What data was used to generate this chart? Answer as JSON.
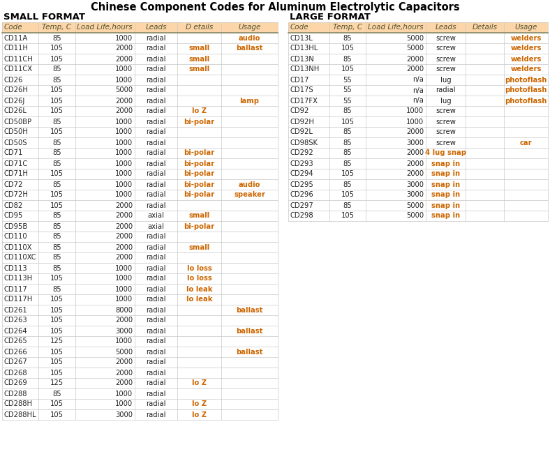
{
  "title": "Chinese Component Codes for Aluminum Electrolytic Capacitors",
  "small_format_label": "SMALL FORMAT",
  "large_format_label": "LARGE FORMAT",
  "small_headers": [
    "Code",
    "Temp, C",
    "Load Life,hours",
    "Leads",
    "D etails",
    "Usage"
  ],
  "large_headers": [
    "Code",
    "Temp, C",
    "Load Life,hours",
    "Leads",
    "Details",
    "Usage"
  ],
  "small_data": [
    [
      "CD11A",
      "85",
      "1000",
      "radial",
      "",
      "audio"
    ],
    [
      "CD11H",
      "105",
      "2000",
      "radial",
      "small",
      "ballast"
    ],
    [
      "CD11CH",
      "105",
      "2000",
      "radial",
      "small",
      ""
    ],
    [
      "CD11CX",
      "85",
      "1000",
      "radial",
      "small",
      ""
    ],
    [
      "CD26",
      "85",
      "1000",
      "radial",
      "",
      ""
    ],
    [
      "CD26H",
      "105",
      "5000",
      "radial",
      "",
      ""
    ],
    [
      "CD26J",
      "105",
      "2000",
      "radial",
      "",
      "lamp"
    ],
    [
      "CD26L",
      "105",
      "2000",
      "radial",
      "lo Z",
      ""
    ],
    [
      "CD50BP",
      "85",
      "1000",
      "radial",
      "bi-polar",
      ""
    ],
    [
      "CD50H",
      "105",
      "1000",
      "radial",
      "",
      ""
    ],
    [
      "CD50S",
      "85",
      "1000",
      "radial",
      "",
      ""
    ],
    [
      "CD71",
      "85",
      "1000",
      "radial",
      "bi-polar",
      ""
    ],
    [
      "CD71C",
      "85",
      "1000",
      "radial",
      "bi-polar",
      ""
    ],
    [
      "CD71H",
      "105",
      "1000",
      "radial",
      "bi-polar",
      ""
    ],
    [
      "CD72",
      "85",
      "1000",
      "radial",
      "bi-polar",
      "audio"
    ],
    [
      "CD72H",
      "105",
      "1000",
      "radial",
      "bi-polar",
      "speaker"
    ],
    [
      "CD82",
      "105",
      "2000",
      "radial",
      "",
      ""
    ],
    [
      "CD95",
      "85",
      "2000",
      "axial",
      "small",
      ""
    ],
    [
      "CD95B",
      "85",
      "2000",
      "axial",
      "bi-polar",
      ""
    ],
    [
      "CD110",
      "85",
      "2000",
      "radial",
      "",
      ""
    ],
    [
      "CD110X",
      "85",
      "2000",
      "radial",
      "small",
      ""
    ],
    [
      "CD110XC",
      "85",
      "2000",
      "radial",
      "",
      ""
    ],
    [
      "CD113",
      "85",
      "1000",
      "radial",
      "lo loss",
      ""
    ],
    [
      "CD113H",
      "105",
      "1000",
      "radial",
      "lo loss",
      ""
    ],
    [
      "CD117",
      "85",
      "1000",
      "radial",
      "lo leak",
      ""
    ],
    [
      "CD117H",
      "105",
      "1000",
      "radial",
      "lo leak",
      ""
    ],
    [
      "CD261",
      "105",
      "8000",
      "radial",
      "",
      "ballast"
    ],
    [
      "CD263",
      "105",
      "2000",
      "radial",
      "",
      ""
    ],
    [
      "CD264",
      "105",
      "3000",
      "radial",
      "",
      "ballast"
    ],
    [
      "CD265",
      "125",
      "1000",
      "radial",
      "",
      ""
    ],
    [
      "CD266",
      "105",
      "5000",
      "radial",
      "",
      "ballast"
    ],
    [
      "CD267",
      "105",
      "2000",
      "radial",
      "",
      ""
    ],
    [
      "CD268",
      "105",
      "2000",
      "radial",
      "",
      ""
    ],
    [
      "CD269",
      "125",
      "2000",
      "radial",
      "lo Z",
      ""
    ],
    [
      "CD288",
      "85",
      "1000",
      "radial",
      "",
      ""
    ],
    [
      "CD288H",
      "105",
      "1000",
      "radial",
      "lo Z",
      ""
    ],
    [
      "CD288HL",
      "105",
      "3000",
      "radial",
      "lo Z",
      ""
    ]
  ],
  "large_data": [
    [
      "CD13L",
      "85",
      "5000",
      "screw",
      "",
      "welders"
    ],
    [
      "CD13HL",
      "105",
      "5000",
      "screw",
      "",
      "welders"
    ],
    [
      "CD13N",
      "85",
      "2000",
      "screw",
      "",
      "welders"
    ],
    [
      "CD13NH",
      "105",
      "2000",
      "screw",
      "",
      "welders"
    ],
    [
      "CD17",
      "55",
      "n/a",
      "lug",
      "",
      "photoflash"
    ],
    [
      "CD17S",
      "55",
      "n/a",
      "radial",
      "",
      "photoflash"
    ],
    [
      "CD17FX",
      "55",
      "n/a",
      "lug",
      "",
      "photoflash"
    ],
    [
      "CD92",
      "85",
      "1000",
      "screw",
      "",
      ""
    ],
    [
      "CD92H",
      "105",
      "1000",
      "screw",
      "",
      ""
    ],
    [
      "CD92L",
      "85",
      "2000",
      "screw",
      "",
      ""
    ],
    [
      "CD98SK",
      "85",
      "3000",
      "screw",
      "",
      "car"
    ],
    [
      "CD292",
      "85",
      "2000",
      "4 lug snap",
      "",
      ""
    ],
    [
      "CD293",
      "85",
      "2000",
      "snap in",
      "",
      ""
    ],
    [
      "CD294",
      "105",
      "2000",
      "snap in",
      "",
      ""
    ],
    [
      "CD295",
      "85",
      "3000",
      "snap in",
      "",
      ""
    ],
    [
      "CD296",
      "105",
      "3000",
      "snap in",
      "",
      ""
    ],
    [
      "CD297",
      "85",
      "5000",
      "snap in",
      "",
      ""
    ],
    [
      "CD298",
      "105",
      "5000",
      "snap in",
      "",
      ""
    ]
  ],
  "header_bg": "#fcd5a8",
  "bg_color": "#ffffff",
  "grid_color": "#c8c8c8",
  "title_color": "#000000",
  "header_text_color": "#555533",
  "data_text_color": "#222222",
  "special_text_color": "#cc6600",
  "section_label_color": "#000000",
  "title_fontsize": 10.5,
  "header_fontsize": 7.5,
  "data_fontsize": 7.2,
  "section_fontsize": 9.5,
  "fig_width": 7.88,
  "fig_height": 6.51
}
